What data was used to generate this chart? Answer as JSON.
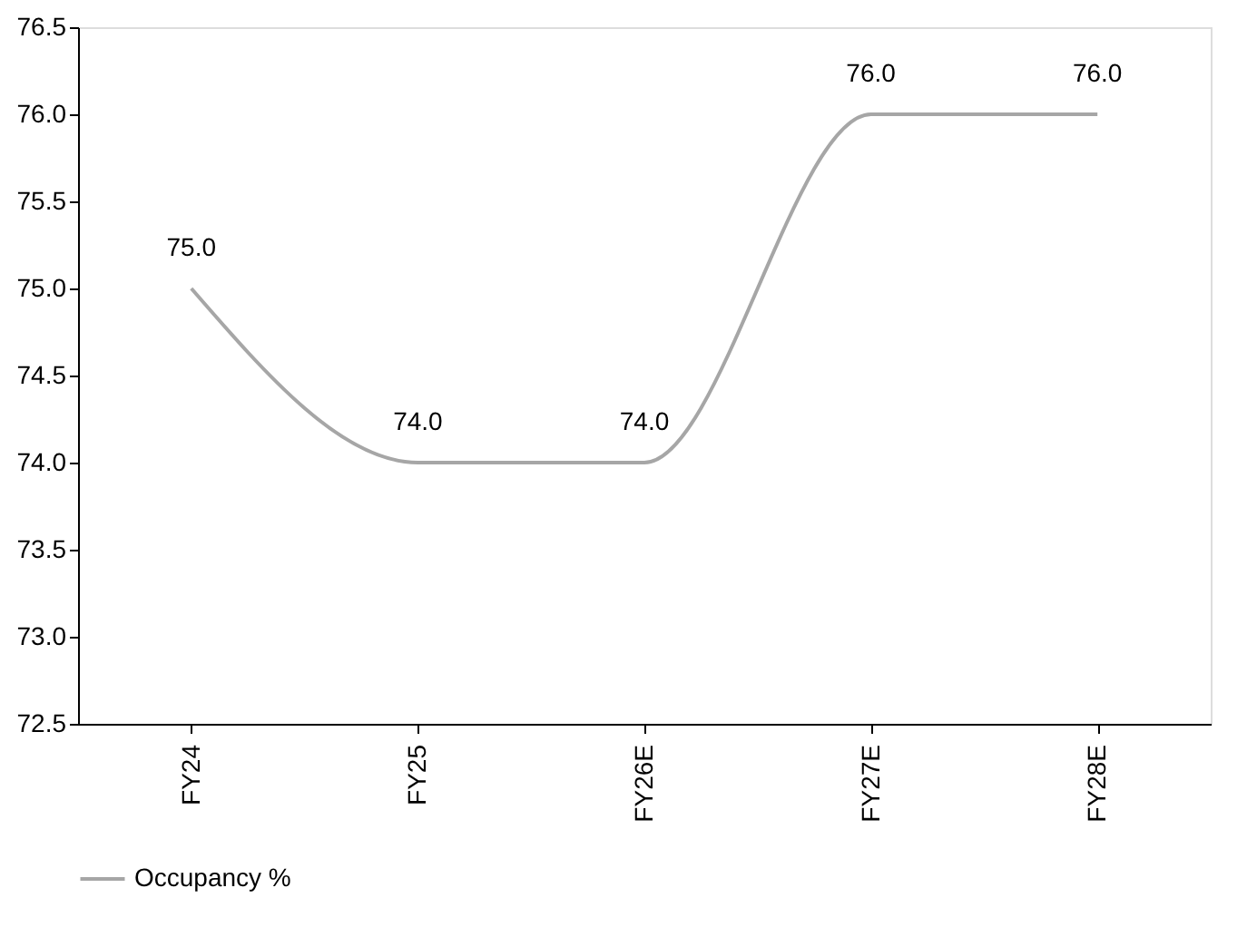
{
  "chart_data": {
    "type": "line",
    "categories": [
      "FY24",
      "FY25",
      "FY26E",
      "FY27E",
      "FY28E"
    ],
    "series": [
      {
        "name": "Occupancy %",
        "color": "#a6a6a6",
        "values": [
          75.0,
          74.0,
          74.0,
          76.0,
          76.0
        ],
        "value_labels": [
          "75.0",
          "74.0",
          "74.0",
          "76.0",
          "76.0"
        ]
      }
    ],
    "ylim": [
      72.5,
      76.5
    ],
    "yticks": [
      72.5,
      {
        "value": 73,
        "label": "73.0"
      },
      73.5,
      {
        "value": 74,
        "label": "74.0"
      },
      74.5,
      {
        "value": 75,
        "label": "75.0"
      },
      75.5,
      {
        "value": 76,
        "label": "76.0"
      },
      76.5
    ],
    "grid": false,
    "legend": "bottom",
    "marker": "none",
    "line_style": "solid"
  }
}
